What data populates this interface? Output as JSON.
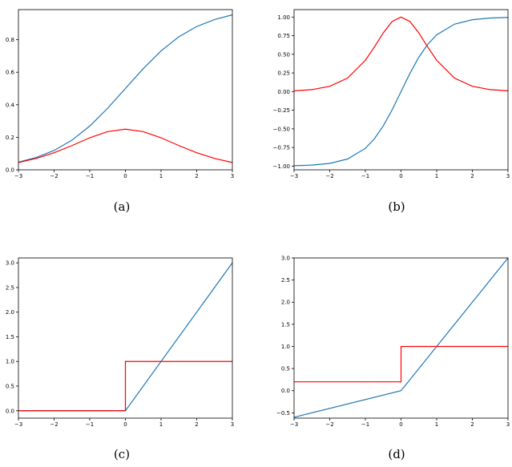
{
  "colors": {
    "primary_line": "#1f77b4",
    "derivative_line": "#ff0000",
    "axes": "#000000"
  },
  "chart_data": [
    {
      "id": "a",
      "caption": "(a)",
      "type": "line",
      "xlim": [
        -3,
        3
      ],
      "ylim": [
        0,
        0.985
      ],
      "xticks": [
        -3,
        -2,
        -1,
        0,
        1,
        2,
        3
      ],
      "xtick_labels": [
        "−3",
        "−2",
        "−1",
        "0",
        "1",
        "2",
        "3"
      ],
      "yticks": [
        0,
        0.2,
        0.4,
        0.6,
        0.8
      ],
      "ytick_labels": [
        "0.0",
        "0.2",
        "0.4",
        "0.6",
        "0.8"
      ],
      "grid": false,
      "series": [
        {
          "color": "#1f77b4",
          "x": [
            -3,
            -2.5,
            -2,
            -1.5,
            -1,
            -0.5,
            0,
            0.5,
            1,
            1.5,
            2,
            2.5,
            3
          ],
          "y": [
            0.047,
            0.076,
            0.119,
            0.182,
            0.269,
            0.378,
            0.5,
            0.622,
            0.731,
            0.818,
            0.881,
            0.924,
            0.953
          ]
        },
        {
          "color": "#ff0000",
          "x": [
            -3,
            -2.5,
            -2,
            -1.5,
            -1,
            -0.5,
            0,
            0.5,
            1,
            1.5,
            2,
            2.5,
            3
          ],
          "y": [
            0.045,
            0.07,
            0.105,
            0.149,
            0.197,
            0.235,
            0.25,
            0.235,
            0.197,
            0.149,
            0.105,
            0.07,
            0.045
          ]
        }
      ]
    },
    {
      "id": "b",
      "caption": "(b)",
      "type": "line",
      "xlim": [
        -3,
        3
      ],
      "ylim": [
        -1.05,
        1.1
      ],
      "xticks": [
        -3,
        -2,
        -1,
        0,
        1,
        2,
        3
      ],
      "xtick_labels": [
        "−3",
        "−2",
        "−1",
        "0",
        "1",
        "2",
        "3"
      ],
      "yticks": [
        -1,
        -0.75,
        -0.5,
        -0.25,
        0,
        0.25,
        0.5,
        0.75,
        1
      ],
      "ytick_labels": [
        "−1.00",
        "−0.75",
        "−0.50",
        "−0.25",
        "0.00",
        "0.25",
        "0.50",
        "0.75",
        "1.00"
      ],
      "grid": false,
      "series": [
        {
          "color": "#1f77b4",
          "x": [
            -3,
            -2.5,
            -2,
            -1.5,
            -1,
            -0.75,
            -0.5,
            -0.25,
            0,
            0.25,
            0.5,
            0.75,
            1,
            1.5,
            2,
            2.5,
            3
          ],
          "y": [
            -0.995,
            -0.987,
            -0.964,
            -0.905,
            -0.762,
            -0.635,
            -0.462,
            -0.245,
            0,
            0.245,
            0.462,
            0.635,
            0.762,
            0.905,
            0.964,
            0.987,
            0.995
          ]
        },
        {
          "color": "#ff0000",
          "x": [
            -3,
            -2.5,
            -2,
            -1.5,
            -1,
            -0.75,
            -0.5,
            -0.25,
            0,
            0.25,
            0.5,
            0.75,
            1,
            1.5,
            2,
            2.5,
            3
          ],
          "y": [
            0.01,
            0.026,
            0.071,
            0.181,
            0.42,
            0.597,
            0.786,
            0.94,
            1.0,
            0.94,
            0.786,
            0.597,
            0.42,
            0.181,
            0.071,
            0.026,
            0.01
          ]
        }
      ]
    },
    {
      "id": "c",
      "caption": "(c)",
      "type": "line",
      "xlim": [
        -3,
        3
      ],
      "ylim": [
        -0.15,
        3.1
      ],
      "xticks": [
        -3,
        -2,
        -1,
        0,
        1,
        2,
        3
      ],
      "xtick_labels": [
        "−3",
        "−2",
        "−1",
        "0",
        "1",
        "2",
        "3"
      ],
      "yticks": [
        0,
        0.5,
        1,
        1.5,
        2,
        2.5,
        3
      ],
      "ytick_labels": [
        "0.0",
        "0.5",
        "1.0",
        "1.5",
        "2.0",
        "2.5",
        "3.0"
      ],
      "grid": false,
      "series": [
        {
          "color": "#1f77b4",
          "x": [
            -3,
            0,
            3
          ],
          "y": [
            0,
            0,
            3
          ]
        },
        {
          "color": "#ff0000",
          "x": [
            -3,
            0,
            0,
            3
          ],
          "y": [
            0,
            0,
            1,
            1
          ]
        }
      ]
    },
    {
      "id": "d",
      "caption": "(d)",
      "type": "line",
      "xlim": [
        -3,
        3
      ],
      "ylim": [
        -0.62,
        3.0
      ],
      "xticks": [
        -3,
        -2,
        -1,
        0,
        1,
        2,
        3
      ],
      "xtick_labels": [
        "−3",
        "−2",
        "−1",
        "0",
        "1",
        "2",
        "3"
      ],
      "yticks": [
        -0.5,
        0,
        0.5,
        1,
        1.5,
        2,
        2.5,
        3
      ],
      "ytick_labels": [
        "−0.5",
        "0.0",
        "0.5",
        "1.0",
        "1.5",
        "2.0",
        "2.5",
        "3.0"
      ],
      "grid": false,
      "series": [
        {
          "color": "#1f77b4",
          "x": [
            -3,
            0,
            3
          ],
          "y": [
            -0.6,
            0,
            3
          ]
        },
        {
          "color": "#ff0000",
          "x": [
            -3,
            0,
            0,
            3
          ],
          "y": [
            0.2,
            0.2,
            1,
            1
          ]
        }
      ]
    }
  ]
}
